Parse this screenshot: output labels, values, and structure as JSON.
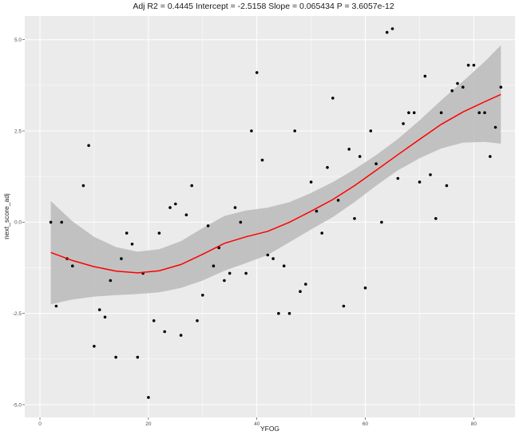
{
  "chart_data": {
    "type": "scatter",
    "title": "Adj R2 =  0.4445 Intercept = -2.5158  Slope = 0.065434  P = 3.6057e-12",
    "xlabel": "YFOG",
    "ylabel": "next_score_adj",
    "xlim": [
      -2.8,
      87.6
    ],
    "ylim": [
      -5.35,
      5.65
    ],
    "x_ticks": [
      0,
      20,
      40,
      60,
      80
    ],
    "x_tick_labels": [
      "0",
      "20",
      "40",
      "60",
      "80"
    ],
    "y_ticks": [
      -5.0,
      -2.5,
      0.0,
      2.5,
      5.0
    ],
    "y_tick_labels": [
      "-5.0",
      "-2.5",
      "0.0",
      "2.5",
      "5.0"
    ],
    "grid": true,
    "colors": {
      "panel": "#ebebeb",
      "grid": "#ffffff",
      "points": "#000000",
      "fit_line": "#ff0000",
      "confidence_band": "#bdbdbd"
    },
    "points": [
      {
        "x": 2,
        "y": 0.0
      },
      {
        "x": 3,
        "y": -2.3
      },
      {
        "x": 4,
        "y": 0.0
      },
      {
        "x": 5,
        "y": -1.0
      },
      {
        "x": 6,
        "y": -1.2
      },
      {
        "x": 8,
        "y": 1.0
      },
      {
        "x": 9,
        "y": 2.1
      },
      {
        "x": 10,
        "y": -3.4
      },
      {
        "x": 11,
        "y": -2.4
      },
      {
        "x": 12,
        "y": -2.6
      },
      {
        "x": 13,
        "y": -1.6
      },
      {
        "x": 14,
        "y": -3.7
      },
      {
        "x": 15,
        "y": -1.0
      },
      {
        "x": 16,
        "y": -0.3
      },
      {
        "x": 17,
        "y": -0.6
      },
      {
        "x": 18,
        "y": -3.7
      },
      {
        "x": 19,
        "y": -1.4
      },
      {
        "x": 20,
        "y": -4.8
      },
      {
        "x": 21,
        "y": -2.7
      },
      {
        "x": 22,
        "y": -0.3
      },
      {
        "x": 23,
        "y": -3.0
      },
      {
        "x": 24,
        "y": 0.4
      },
      {
        "x": 25,
        "y": 0.5
      },
      {
        "x": 26,
        "y": -3.1
      },
      {
        "x": 27,
        "y": 0.2
      },
      {
        "x": 28,
        "y": 1.0
      },
      {
        "x": 29,
        "y": -2.7
      },
      {
        "x": 30,
        "y": -2.0
      },
      {
        "x": 31,
        "y": -0.1
      },
      {
        "x": 32,
        "y": -1.2
      },
      {
        "x": 33,
        "y": -0.7
      },
      {
        "x": 34,
        "y": -1.6
      },
      {
        "x": 35,
        "y": -1.4
      },
      {
        "x": 36,
        "y": 0.4
      },
      {
        "x": 37,
        "y": 0.0
      },
      {
        "x": 38,
        "y": -1.4
      },
      {
        "x": 39,
        "y": 2.5
      },
      {
        "x": 40,
        "y": 4.1
      },
      {
        "x": 41,
        "y": 1.7
      },
      {
        "x": 42,
        "y": -0.9
      },
      {
        "x": 43,
        "y": -1.0
      },
      {
        "x": 44,
        "y": -2.5
      },
      {
        "x": 45,
        "y": -1.2
      },
      {
        "x": 46,
        "y": -2.5
      },
      {
        "x": 47,
        "y": 2.5
      },
      {
        "x": 48,
        "y": -1.9
      },
      {
        "x": 49,
        "y": -1.7
      },
      {
        "x": 50,
        "y": 1.1
      },
      {
        "x": 51,
        "y": 0.3
      },
      {
        "x": 52,
        "y": -0.3
      },
      {
        "x": 53,
        "y": 1.5
      },
      {
        "x": 54,
        "y": 3.4
      },
      {
        "x": 55,
        "y": 0.6
      },
      {
        "x": 56,
        "y": -2.3
      },
      {
        "x": 57,
        "y": 2.0
      },
      {
        "x": 58,
        "y": 0.1
      },
      {
        "x": 59,
        "y": 1.8
      },
      {
        "x": 60,
        "y": -1.8
      },
      {
        "x": 61,
        "y": 2.5
      },
      {
        "x": 62,
        "y": 1.6
      },
      {
        "x": 63,
        "y": 0.0
      },
      {
        "x": 64,
        "y": 5.2
      },
      {
        "x": 65,
        "y": 5.3
      },
      {
        "x": 66,
        "y": 1.2
      },
      {
        "x": 67,
        "y": 2.7
      },
      {
        "x": 68,
        "y": 3.0
      },
      {
        "x": 69,
        "y": 3.0
      },
      {
        "x": 70,
        "y": 1.1
      },
      {
        "x": 71,
        "y": 4.0
      },
      {
        "x": 72,
        "y": 1.3
      },
      {
        "x": 73,
        "y": 0.1
      },
      {
        "x": 74,
        "y": 3.0
      },
      {
        "x": 75,
        "y": 1.0
      },
      {
        "x": 76,
        "y": 3.6
      },
      {
        "x": 77,
        "y": 3.8
      },
      {
        "x": 78,
        "y": 3.7
      },
      {
        "x": 79,
        "y": 4.3
      },
      {
        "x": 80,
        "y": 4.3
      },
      {
        "x": 81,
        "y": 3.0
      },
      {
        "x": 82,
        "y": 3.0
      },
      {
        "x": 83,
        "y": 1.8
      },
      {
        "x": 84,
        "y": 2.6
      },
      {
        "x": 85,
        "y": 3.7
      }
    ],
    "fit_line": {
      "x": [
        2,
        6,
        10,
        14,
        18,
        22,
        26,
        30,
        34,
        38,
        42,
        46,
        50,
        54,
        58,
        62,
        66,
        70,
        74,
        78,
        82,
        85
      ],
      "y": [
        -0.83,
        -1.05,
        -1.22,
        -1.34,
        -1.39,
        -1.33,
        -1.16,
        -0.88,
        -0.58,
        -0.4,
        -0.25,
        0.0,
        0.3,
        0.62,
        1.0,
        1.42,
        1.85,
        2.27,
        2.68,
        3.02,
        3.3,
        3.5
      ]
    },
    "confidence_band": {
      "x": [
        2,
        6,
        10,
        14,
        18,
        22,
        26,
        30,
        34,
        38,
        42,
        46,
        50,
        54,
        58,
        62,
        66,
        70,
        74,
        78,
        82,
        85
      ],
      "lower": [
        -2.25,
        -2.12,
        -2.04,
        -2.0,
        -1.97,
        -1.92,
        -1.8,
        -1.6,
        -1.33,
        -1.12,
        -0.9,
        -0.55,
        -0.2,
        0.14,
        0.55,
        1.0,
        1.42,
        1.75,
        2.02,
        2.18,
        2.2,
        2.15
      ],
      "upper": [
        0.58,
        0.02,
        -0.4,
        -0.68,
        -0.81,
        -0.74,
        -0.52,
        -0.16,
        0.17,
        0.32,
        0.4,
        0.55,
        0.8,
        1.1,
        1.45,
        1.84,
        2.28,
        2.79,
        3.34,
        3.86,
        4.4,
        4.85
      ]
    }
  }
}
